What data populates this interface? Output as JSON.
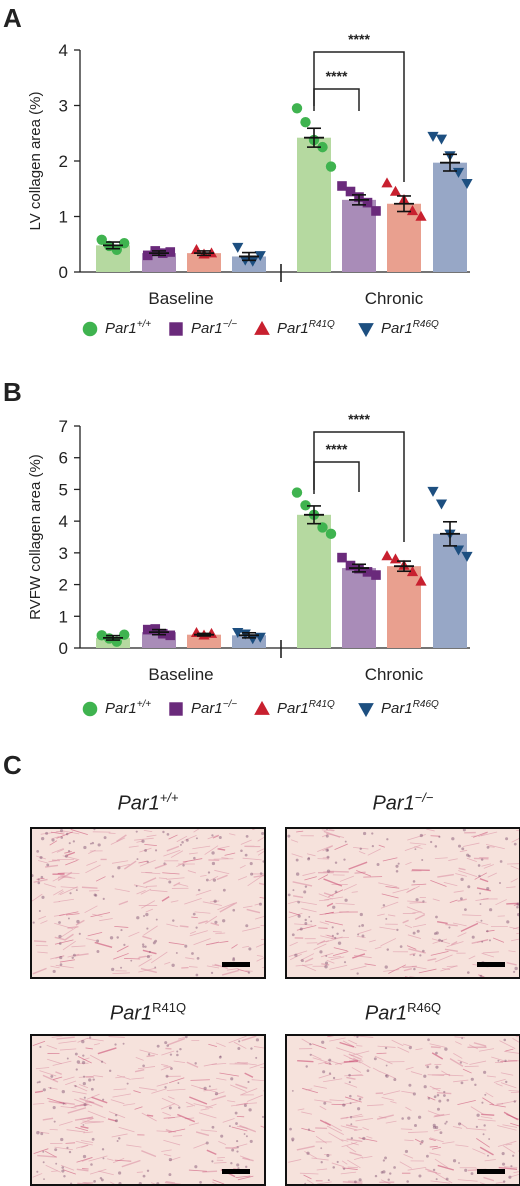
{
  "panel_letters": {
    "a": "A",
    "b": "B",
    "c": "C"
  },
  "legend": [
    {
      "base": "Par1",
      "sup": "+/+",
      "color": "#3fb34f",
      "shape": "circle"
    },
    {
      "base": "Par1",
      "sup": "−/−",
      "color": "#6a2a7b",
      "shape": "square"
    },
    {
      "base": "Par1",
      "sup": "R41Q",
      "color": "#c8202f",
      "shape": "triangle-up"
    },
    {
      "base": "Par1",
      "sup": "R46Q",
      "color": "#1d4f80",
      "shape": "triangle-down"
    }
  ],
  "colors": {
    "bar_fills": [
      "#b5d9a0",
      "#a98cb8",
      "#e9a08f",
      "#97a7c6"
    ],
    "marker": [
      "#3fb34f",
      "#6a2a7b",
      "#c8202f",
      "#1d4f80"
    ]
  },
  "chart_data": [
    {
      "type": "bar",
      "ylabel": "LV collagen area (%)",
      "ylim": [
        0,
        4
      ],
      "yticks": [
        0,
        1,
        2,
        3,
        4
      ],
      "groups": [
        "Baseline",
        "Chronic"
      ],
      "series_labels": [
        "Par1+/+",
        "Par1−/−",
        "Par1R41Q",
        "Par1R46Q"
      ],
      "means": [
        [
          0.48,
          0.34,
          0.34,
          0.28
        ],
        [
          2.42,
          1.3,
          1.23,
          1.97
        ]
      ],
      "sem": [
        [
          0.06,
          0.04,
          0.04,
          0.07
        ],
        [
          0.17,
          0.09,
          0.14,
          0.15
        ]
      ],
      "points": [
        [
          [
            0.58,
            0.47,
            0.4,
            0.52
          ],
          [
            0.3,
            0.38,
            0.34,
            0.36
          ],
          [
            0.4,
            0.32,
            0.34
          ],
          [
            0.45,
            0.22,
            0.2,
            0.3
          ]
        ],
        [
          [
            2.95,
            2.7,
            2.38,
            2.25,
            1.9
          ],
          [
            1.55,
            1.45,
            1.35,
            1.25,
            1.1
          ],
          [
            1.6,
            1.45,
            1.3,
            1.1,
            1.0
          ],
          [
            2.45,
            2.4,
            2.1,
            1.8,
            1.6
          ]
        ]
      ],
      "significance": [
        {
          "from": 0,
          "to": 1,
          "label": "****"
        },
        {
          "from": 0,
          "to": 2,
          "label": "****"
        }
      ]
    },
    {
      "type": "bar",
      "ylabel": "RVFW collagen area (%)",
      "ylim": [
        0,
        7
      ],
      "yticks": [
        0,
        1,
        2,
        3,
        4,
        5,
        6,
        7
      ],
      "groups": [
        "Baseline",
        "Chronic"
      ],
      "series_labels": [
        "Par1+/+",
        "Par1−/−",
        "Par1R41Q",
        "Par1R46Q"
      ],
      "means": [
        [
          0.32,
          0.5,
          0.42,
          0.4
        ],
        [
          4.2,
          2.52,
          2.58,
          3.6
        ]
      ],
      "sem": [
        [
          0.07,
          0.08,
          0.04,
          0.08
        ],
        [
          0.28,
          0.12,
          0.16,
          0.38
        ]
      ],
      "points": [
        [
          [
            0.4,
            0.3,
            0.2,
            0.42
          ],
          [
            0.58,
            0.6,
            0.45,
            0.4
          ],
          [
            0.48,
            0.4,
            0.45
          ],
          [
            0.5,
            0.45,
            0.3,
            0.35
          ]
        ],
        [
          [
            4.9,
            4.5,
            4.2,
            3.8,
            3.6
          ],
          [
            2.85,
            2.6,
            2.5,
            2.4,
            2.3
          ],
          [
            2.9,
            2.8,
            2.6,
            2.4,
            2.1
          ],
          [
            4.95,
            4.55,
            3.6,
            3.1,
            2.9
          ]
        ]
      ],
      "significance": [
        {
          "from": 0,
          "to": 1,
          "label": "****"
        },
        {
          "from": 0,
          "to": 2,
          "label": "****"
        }
      ]
    }
  ],
  "micrographs": [
    {
      "base": "Par1",
      "sup": "+/+",
      "italic_sup": true
    },
    {
      "base": "Par1",
      "sup": "−/−",
      "italic_sup": true
    },
    {
      "base": "Par1",
      "sup": "R41Q",
      "italic_sup": false
    },
    {
      "base": "Par1",
      "sup": "R46Q",
      "italic_sup": false
    }
  ]
}
